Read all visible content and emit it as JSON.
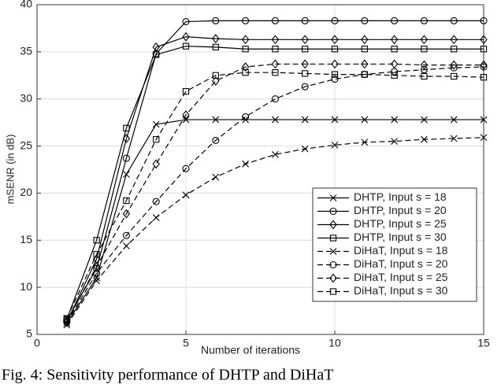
{
  "chart_data": {
    "type": "line",
    "x_label": "Number of iterations",
    "y_label": "mSENR (in dB)",
    "x": [
      1,
      2,
      3,
      4,
      5,
      6,
      7,
      8,
      9,
      10,
      11,
      12,
      13,
      14,
      15
    ],
    "xlim": [
      0,
      15
    ],
    "xticks": [
      0,
      5,
      10,
      15
    ],
    "ylim": [
      5,
      40
    ],
    "yticks": [
      5,
      10,
      15,
      20,
      25,
      30,
      35,
      40
    ],
    "grid": true,
    "legend": "lower right",
    "series": [
      {
        "name": "DHTP, Input s = 18",
        "color": "#000000",
        "marker": "x",
        "dash": false,
        "values": [
          6.2,
          11,
          22,
          27.3,
          27.8,
          27.8,
          27.8,
          27.8,
          27.8,
          27.8,
          27.8,
          27.8,
          27.8,
          27.8,
          27.8
        ]
      },
      {
        "name": "DHTP, Input s = 20",
        "color": "#000000",
        "marker": "circle",
        "dash": false,
        "values": [
          6.5,
          12,
          23.7,
          34.8,
          38.2,
          38.3,
          38.3,
          38.3,
          38.3,
          38.3,
          38.3,
          38.3,
          38.3,
          38.3,
          38.3
        ]
      },
      {
        "name": "DHTP, Input s = 25",
        "color": "#000000",
        "marker": "diamond",
        "dash": false,
        "values": [
          6.3,
          13,
          25.8,
          35.5,
          36.6,
          36.4,
          36.3,
          36.3,
          36.3,
          36.3,
          36.3,
          36.3,
          36.3,
          36.3,
          36.3
        ]
      },
      {
        "name": "DHTP, Input s = 30",
        "color": "#000000",
        "marker": "square",
        "dash": false,
        "values": [
          6.6,
          15,
          26.9,
          34.7,
          35.6,
          35.5,
          35.3,
          35.3,
          35.3,
          35.3,
          35.3,
          35.3,
          35.3,
          35.3,
          35.3
        ]
      },
      {
        "name": "DiHaT, Input s = 18",
        "color": "#000000",
        "marker": "x",
        "dash": true,
        "values": [
          6.0,
          10.7,
          14.4,
          17.4,
          19.8,
          21.7,
          23.1,
          24.1,
          24.7,
          25.1,
          25.4,
          25.5,
          25.7,
          25.8,
          25.9
        ]
      },
      {
        "name": "DiHaT, Input s = 20",
        "color": "#000000",
        "marker": "circle",
        "dash": true,
        "values": [
          6.3,
          11.5,
          15.5,
          19.1,
          22.6,
          25.6,
          28.1,
          30.0,
          31.3,
          32.1,
          32.6,
          32.9,
          33.1,
          33.3,
          33.4
        ]
      },
      {
        "name": "DiHaT, Input s = 25",
        "color": "#000000",
        "marker": "diamond",
        "dash": true,
        "values": [
          6.4,
          12.2,
          17.8,
          23.1,
          28.3,
          31.9,
          33.4,
          33.7,
          33.7,
          33.7,
          33.7,
          33.7,
          33.6,
          33.6,
          33.6
        ]
      },
      {
        "name": "DiHaT, Input s = 30",
        "color": "#000000",
        "marker": "square",
        "dash": true,
        "values": [
          6.7,
          13.5,
          19.2,
          25.7,
          30.8,
          32.5,
          32.8,
          32.8,
          32.7,
          32.6,
          32.6,
          32.5,
          32.4,
          32.4,
          32.3
        ]
      }
    ]
  },
  "caption": "Fig. 4: Sensitivity performance of DHTP and DiHaT"
}
